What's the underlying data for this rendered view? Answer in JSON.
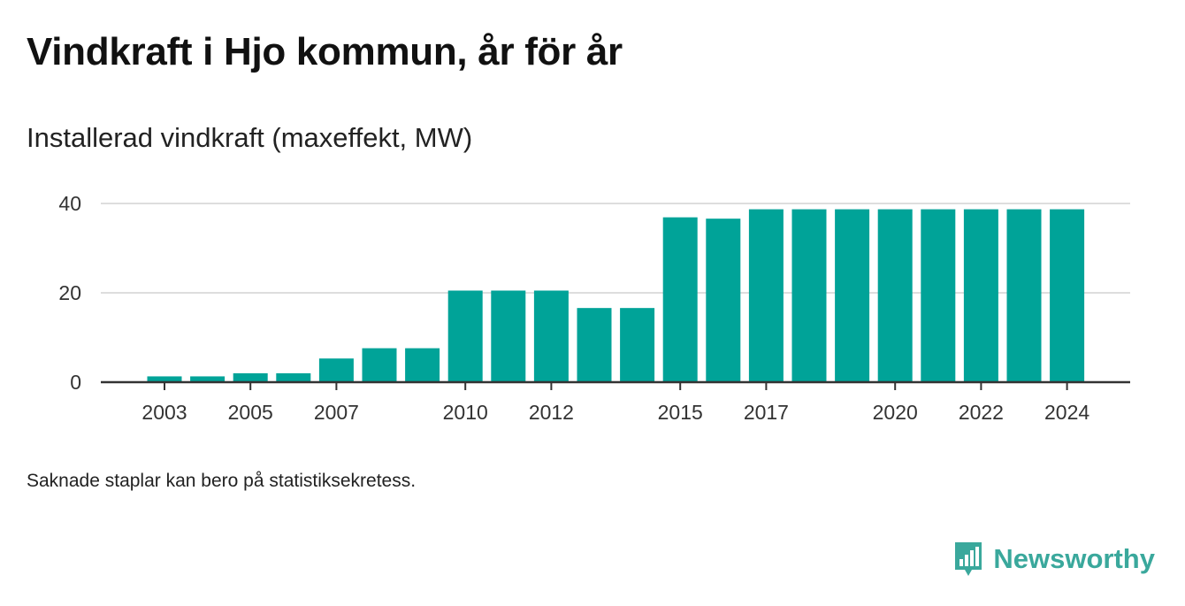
{
  "header": {
    "title": "Vindkraft i Hjo kommun, år för år",
    "subtitle": "Installerad vindkraft (maxeffekt, MW)"
  },
  "footer": {
    "note": "Saknade staplar kan bero på statistiksekretess.",
    "brand": "Newsworthy",
    "brand_icon": "newsworthy-logo-icon"
  },
  "colors": {
    "bar": "#00a398",
    "grid": "#dddddd",
    "axis": "#333333",
    "brand": "#3aa89c"
  },
  "chart_data": {
    "type": "bar",
    "title": "Vindkraft i Hjo kommun, år för år",
    "subtitle": "Installerad vindkraft (maxeffekt, MW)",
    "categories": [
      2003,
      2004,
      2005,
      2006,
      2007,
      2008,
      2009,
      2010,
      2011,
      2012,
      2013,
      2014,
      2015,
      2016,
      2017,
      2018,
      2019,
      2020,
      2021,
      2022,
      2023,
      2024
    ],
    "values": [
      1.3,
      1.3,
      2.0,
      2.0,
      5.3,
      7.6,
      7.6,
      20.5,
      20.5,
      20.5,
      16.6,
      16.6,
      36.9,
      36.6,
      38.7,
      38.7,
      38.7,
      38.7,
      38.7,
      38.7,
      38.7,
      38.7
    ],
    "x_tick_labels": [
      "2003",
      "2005",
      "2007",
      "2010",
      "2012",
      "2015",
      "2017",
      "2020",
      "2022",
      "2024"
    ],
    "y_ticks": [
      0,
      20,
      40
    ],
    "ylim": [
      0,
      40
    ],
    "xlabel": "",
    "ylabel": "",
    "grid": true,
    "legend": "none"
  }
}
